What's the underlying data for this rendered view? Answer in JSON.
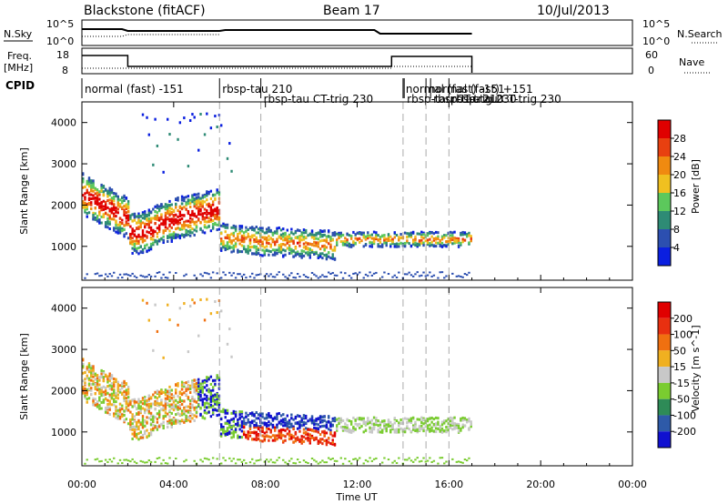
{
  "header": {
    "station": "Blackstone (fitACF)",
    "beam": "Beam 17",
    "date": "10/Jul/2013"
  },
  "top_panels": {
    "nsky_label": "N.Sky",
    "nsky_ticks": [
      "10^5",
      "10^0"
    ],
    "nsearch_label": "N.Search",
    "nsearch_ticks": [
      "10^5",
      "10^0"
    ],
    "freq_label_1": "Freq.",
    "freq_label_2": "[MHz]",
    "freq_ticks": [
      "18",
      "8"
    ],
    "nave_label": "Nave",
    "nave_ticks": [
      "60",
      "0"
    ],
    "cpid_label": "CPID"
  },
  "cpid_segments": [
    {
      "text": "normal (fast) -151",
      "start_hour": 0.0
    },
    {
      "text": "rbsp-tau 210",
      "start_hour": 6.0
    },
    {
      "text": "rbsp-tau CT-trig 230",
      "start_hour": 7.8
    },
    {
      "text": "normal (fast) -151",
      "start_hour": 14.0
    },
    {
      "text": "rbsp-tau CT-trig 230",
      "start_hour": 14.05
    },
    {
      "text": "normal (fast) +151",
      "start_hour": 15.0
    },
    {
      "text": "rbsp-tau 210",
      "start_hour": 15.2
    },
    {
      "text": "rbsp-tau CT-trig 230",
      "start_hour": 16.0
    }
  ],
  "chart_data": [
    {
      "type": "heatmap",
      "title": "Power",
      "xlabel": "Time UT",
      "ylabel": "Slant Range [km]",
      "xlim": [
        0,
        24
      ],
      "ylim": [
        180,
        4500
      ],
      "x_ticks": [
        "00:00",
        "04:00",
        "08:00",
        "12:00",
        "16:00",
        "20:00",
        "00:00"
      ],
      "y_ticks": [
        "1000",
        "2000",
        "3000",
        "4000"
      ],
      "colorbar_label": "Power [dB]",
      "colorbar_ticks": [
        "4",
        "8",
        "12",
        "16",
        "20",
        "24",
        "28"
      ],
      "colorbar_range": [
        0,
        32
      ],
      "colors": [
        "#0a1fe0",
        "#2c4fb0",
        "#2e8b75",
        "#5cc85c",
        "#f0c020",
        "#f08a10",
        "#e84010",
        "#e00000"
      ]
    },
    {
      "type": "heatmap",
      "title": "Velocity",
      "xlabel": "Time UT",
      "ylabel": "Slant Range [km]",
      "xlim": [
        0,
        24
      ],
      "ylim": [
        180,
        4500
      ],
      "x_ticks": [
        "00:00",
        "04:00",
        "08:00",
        "12:00",
        "16:00",
        "20:00",
        "00:00"
      ],
      "y_ticks": [
        "1000",
        "2000",
        "3000",
        "4000"
      ],
      "colorbar_label": "Velocity [m s^-1]",
      "colorbar_ticks": [
        "200",
        "100",
        "50",
        "15",
        "-15",
        "-50",
        "-100",
        "-200"
      ],
      "colors": [
        "#1010d0",
        "#2e5aa8",
        "#2e8b57",
        "#7acc30",
        "#c8c8c8",
        "#f0b020",
        "#f07010",
        "#e83010",
        "#e00000"
      ]
    }
  ],
  "dashed_lines_hours": [
    6.0,
    7.8,
    14.0,
    15.0,
    16.0
  ]
}
